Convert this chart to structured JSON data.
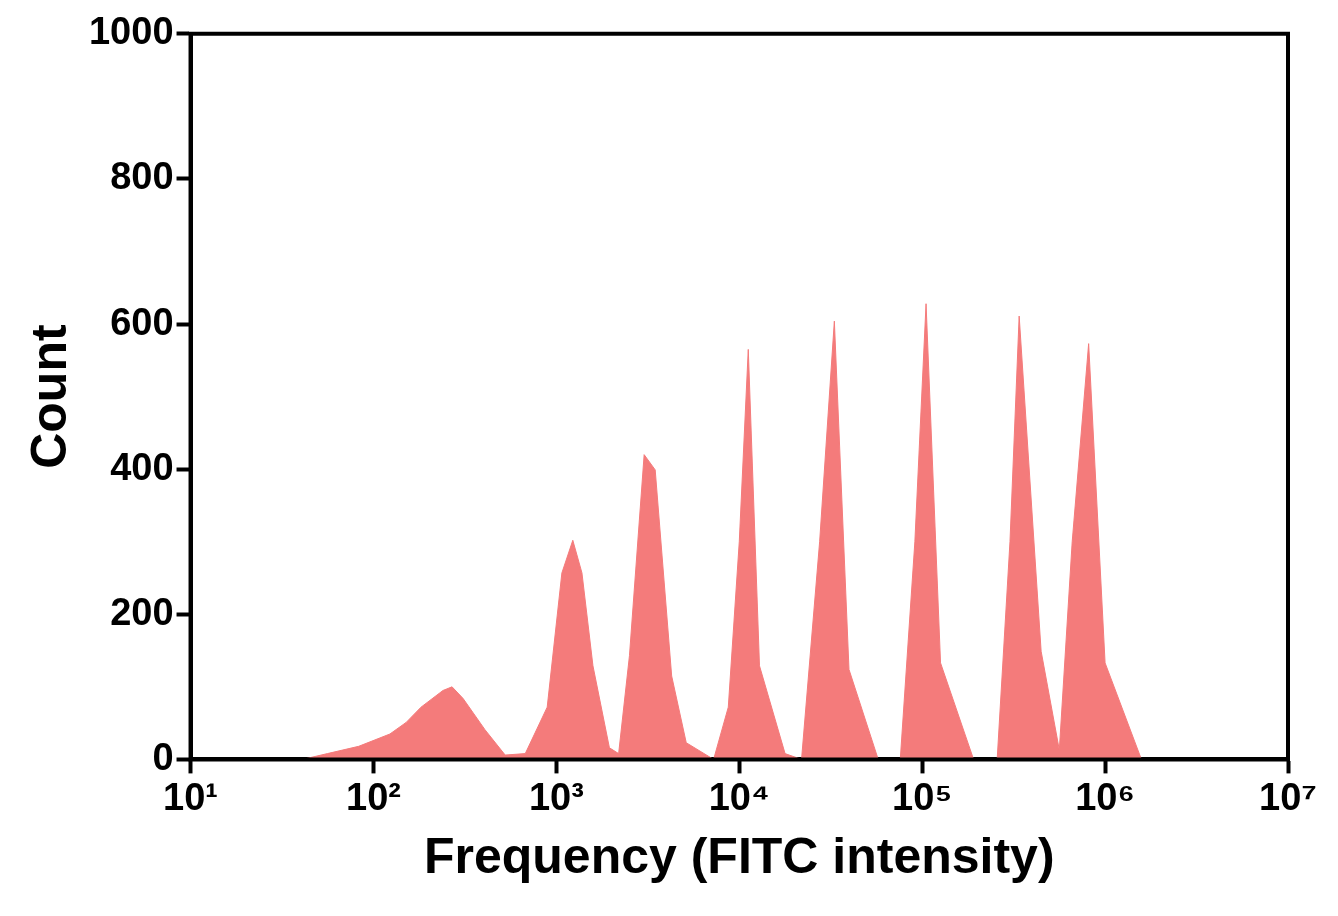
{
  "chart_data": {
    "type": "area",
    "xlabel": "Frequency (FITC intensity)",
    "ylabel": "Count",
    "log": "x",
    "grid": false,
    "legend": false,
    "xlim": [
      10,
      10000000
    ],
    "xticks": [
      {
        "value": 10,
        "label": "10¹"
      },
      {
        "value": 100,
        "label": "10²"
      },
      {
        "value": 1000,
        "label": "10³"
      },
      {
        "value": 10000,
        "label": "10⁴"
      },
      {
        "value": 100000,
        "label": "10⁵"
      },
      {
        "value": 1000000,
        "label": "10⁶"
      },
      {
        "value": 10000000,
        "label": "10⁷"
      }
    ],
    "ylim": [
      0,
      1000
    ],
    "yticks": [
      0,
      200,
      400,
      600,
      800,
      1000
    ],
    "series": [
      {
        "color": "#f47b7b",
        "x": [
          41,
          56,
          83,
          123,
          151,
          182,
          240,
          269,
          309,
          407,
          525,
          676,
          891,
          1072,
          1230,
          1380,
          1585,
          1950,
          2190,
          2510,
          3020,
          3470,
          4270,
          5130,
          7240,
          8710,
          10000,
          11200,
          12900,
          17800,
          21900,
          27500,
          33100,
          39800,
          57500,
          75900,
          91200,
          105000,
          126000,
          191000,
          257000,
          302000,
          339000,
          447000,
          562000,
          661000,
          813000,
          1000000,
          1580000
        ],
        "values": [
          0,
          8,
          18,
          35,
          51,
          72,
          95,
          100,
          84,
          41,
          6,
          8,
          72,
          257,
          302,
          257,
          129,
          16,
          8,
          143,
          420,
          399,
          115,
          23,
          0,
          72,
          300,
          565,
          129,
          8,
          0,
          300,
          604,
          124,
          0,
          0,
          300,
          628,
          133,
          0,
          0,
          300,
          611,
          149,
          13,
          300,
          573,
          133,
          0
        ]
      }
    ]
  }
}
